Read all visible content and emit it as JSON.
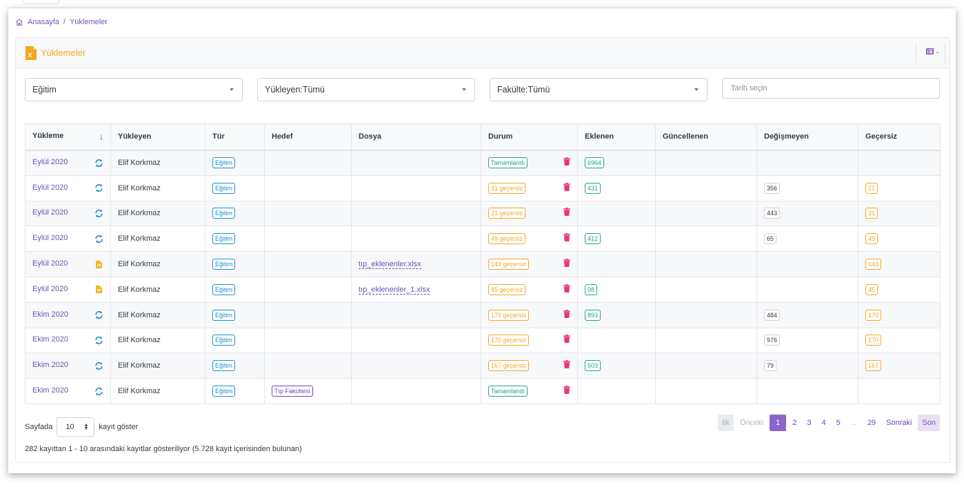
{
  "breadcrumb": {
    "home": "Anasayfa",
    "separator": "/",
    "current": "Yüklemeler"
  },
  "card": {
    "title": "Yüklemeler"
  },
  "filters": {
    "type": "Eğitim",
    "uploader": "Yükleyen:Tümü",
    "faculty": "Fakülte:Tümü",
    "date_placeholder": "Tarih seçin"
  },
  "table": {
    "headers": [
      "Yükleme",
      "Yükleyen",
      "Tür",
      "Hedef",
      "Dosya",
      "Durum",
      "Eklenen",
      "Güncellenen",
      "Değişmeyen",
      "Geçersiz"
    ],
    "sort_indicator": "↓",
    "rows": [
      {
        "period": "Eylül 2020",
        "icon": "refresh-icon",
        "uploader": "Elif Korkmaz",
        "type": "Eğitim",
        "target": "",
        "file": "",
        "status": "Tamamlandı",
        "status_kind": "done",
        "added": "6964",
        "updated": "",
        "unchanged": "",
        "invalid": ""
      },
      {
        "period": "Eylül 2020",
        "icon": "refresh-icon",
        "uploader": "Elif Korkmaz",
        "type": "Eğitim",
        "target": "",
        "file": "",
        "status": "21 geçersiz",
        "status_kind": "warn",
        "added": "431",
        "updated": "",
        "unchanged": "356",
        "invalid": "21"
      },
      {
        "period": "Eylül 2020",
        "icon": "refresh-icon",
        "uploader": "Elif Korkmaz",
        "type": "Eğitim",
        "target": "",
        "file": "",
        "status": "21 geçersiz",
        "status_kind": "warn",
        "added": "",
        "updated": "",
        "unchanged": "443",
        "invalid": "21"
      },
      {
        "period": "Eylül 2020",
        "icon": "refresh-icon",
        "uploader": "Elif Korkmaz",
        "type": "Eğitim",
        "target": "",
        "file": "",
        "status": "49 geçersiz",
        "status_kind": "warn",
        "added": "412",
        "updated": "",
        "unchanged": "65",
        "invalid": "49"
      },
      {
        "period": "Eylül 2020",
        "icon": "file-icon",
        "uploader": "Elif Korkmaz",
        "type": "Eğitim",
        "target": "",
        "file": "tıp_eklenenler.xlsx",
        "status": "143 geçersiz",
        "status_kind": "warn",
        "added": "",
        "updated": "",
        "unchanged": "",
        "invalid": "143"
      },
      {
        "period": "Eylül 2020",
        "icon": "file-icon",
        "uploader": "Elif Korkmaz",
        "type": "Eğitim",
        "target": "",
        "file": "tıp_eklenenler_1.xlsx",
        "status": "45 geçersiz",
        "status_kind": "warn",
        "added": "98",
        "updated": "",
        "unchanged": "",
        "invalid": "45"
      },
      {
        "period": "Ekim 2020",
        "icon": "refresh-icon",
        "uploader": "Elif Korkmaz",
        "type": "Eğitim",
        "target": "",
        "file": "",
        "status": "170 geçersiz",
        "status_kind": "warn",
        "added": "893",
        "updated": "",
        "unchanged": "484",
        "invalid": "170"
      },
      {
        "period": "Ekim 2020",
        "icon": "refresh-icon",
        "uploader": "Elif Korkmaz",
        "type": "Eğitim",
        "target": "",
        "file": "",
        "status": "170 geçersiz",
        "status_kind": "warn",
        "added": "",
        "updated": "",
        "unchanged": "976",
        "invalid": "170"
      },
      {
        "period": "Ekim 2020",
        "icon": "refresh-icon",
        "uploader": "Elif Korkmaz",
        "type": "Eğitim",
        "target": "",
        "file": "",
        "status": "167 geçersiz",
        "status_kind": "warn",
        "added": "503",
        "updated": "",
        "unchanged": "79",
        "invalid": "167"
      },
      {
        "period": "Ekim 2020",
        "icon": "refresh-icon",
        "uploader": "Elif Korkmaz",
        "type": "Eğitim",
        "target": "Tıp Fakültesi",
        "file": "",
        "status": "Tamamlandı",
        "status_kind": "done",
        "added": "",
        "updated": "",
        "unchanged": "",
        "invalid": ""
      }
    ]
  },
  "footer": {
    "per_page_prefix": "Sayfada",
    "per_page_value": "10",
    "per_page_suffix": "kayıt göster",
    "summary": "282 kayıttan 1 - 10 arasındaki kayıtlar gösteriliyor (5.728 kayıt içerisinden bulunan)"
  },
  "pagination": {
    "first": "İlk",
    "prev": "Önceki",
    "pages": [
      "1",
      "2",
      "3",
      "4",
      "5"
    ],
    "ellipsis": "...",
    "last_page": "29",
    "next": "Sonraki",
    "last": "Son",
    "active": "1"
  },
  "colors": {
    "accent": "#7952b3",
    "title_orange": "#f5a623",
    "info_blue": "#1b8fd0",
    "success_green": "#21a390",
    "danger_pink": "#e8357c"
  }
}
